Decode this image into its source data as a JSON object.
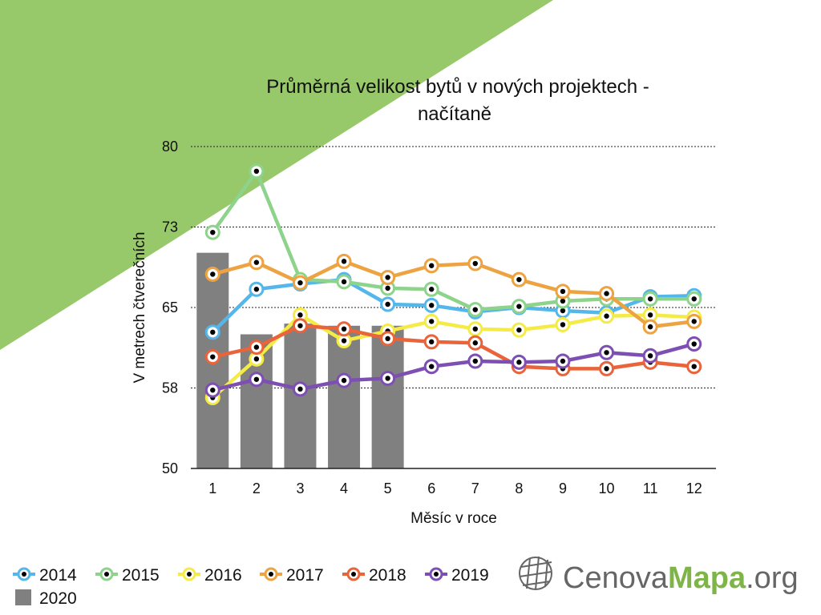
{
  "colors": {
    "background_triangle": "#97C869",
    "grid": "#222222",
    "axis": "#222222",
    "marker_dot": "#000000",
    "logo_gray": "#666666",
    "logo_green": "#7FB548"
  },
  "chart_data": {
    "type": "line",
    "title_lines": [
      "Průměrná velikost bytů v nových projektech -",
      "načítaně"
    ],
    "xlabel": "Měsíc v roce",
    "ylabel": "V metrech čtverečních",
    "categories": [
      "1",
      "2",
      "3",
      "4",
      "5",
      "6",
      "7",
      "8",
      "9",
      "10",
      "11",
      "12"
    ],
    "ylim": [
      50,
      80
    ],
    "yticks": [
      "50",
      "58",
      "65",
      "73",
      "80"
    ],
    "ytick_values": [
      50,
      57.5,
      65,
      72.5,
      80
    ],
    "grid": true,
    "legend_position": "bottom-left",
    "bar_series": {
      "name": "2020",
      "color": "#808080",
      "values": [
        70.1,
        62.5,
        63.5,
        63.3,
        63.3
      ]
    },
    "series": [
      {
        "name": "2014",
        "color": "#55B7E9",
        "values": [
          62.7,
          66.7,
          67.2,
          67.6,
          65.3,
          65.2,
          64.6,
          65.0,
          64.7,
          64.5,
          66.0,
          66.1
        ]
      },
      {
        "name": "2015",
        "color": "#8ED38B",
        "values": [
          72.0,
          77.7,
          67.6,
          67.4,
          66.8,
          66.7,
          64.8,
          65.1,
          65.6,
          65.8,
          65.8,
          65.8
        ]
      },
      {
        "name": "2016",
        "color": "#F5EB47",
        "values": [
          56.6,
          60.2,
          64.3,
          61.9,
          62.8,
          63.7,
          63.0,
          62.9,
          63.4,
          64.2,
          64.3,
          64.1
        ]
      },
      {
        "name": "2017",
        "color": "#EDA342",
        "values": [
          68.1,
          69.2,
          67.3,
          69.3,
          67.8,
          68.9,
          69.1,
          67.6,
          66.5,
          66.3,
          63.2,
          63.7
        ]
      },
      {
        "name": "2018",
        "color": "#E9643B",
        "values": [
          60.4,
          61.3,
          63.3,
          63.0,
          62.1,
          61.8,
          61.7,
          59.5,
          59.3,
          59.3,
          59.9,
          59.5
        ]
      },
      {
        "name": "2019",
        "color": "#7E4FB2",
        "values": [
          57.3,
          58.3,
          57.4,
          58.2,
          58.4,
          59.5,
          60.0,
          59.9,
          60.0,
          60.8,
          60.5,
          61.6
        ]
      }
    ]
  },
  "logo": {
    "part1": "Cenova",
    "part2": "Mapa",
    "part3": ".org",
    "icon": "globe-grid-icon"
  }
}
